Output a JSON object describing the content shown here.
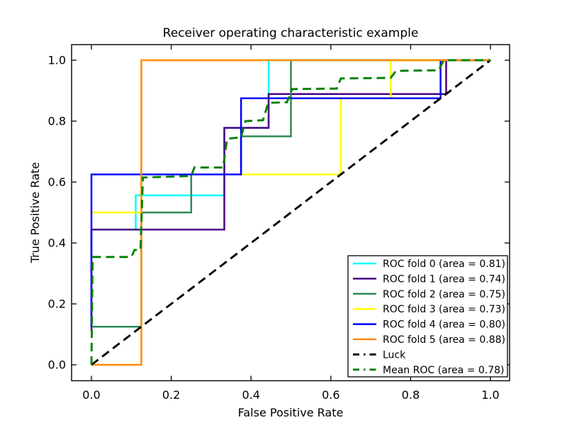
{
  "chart_data": {
    "type": "line",
    "title": "Receiver operating characteristic example",
    "xlabel": "False Positive Rate",
    "ylabel": "True Positive Rate",
    "xlim": [
      -0.05,
      1.05
    ],
    "ylim": [
      -0.05,
      1.05
    ],
    "xticks": [
      0.0,
      0.2,
      0.4,
      0.6,
      0.8,
      1.0
    ],
    "yticks": [
      0.0,
      0.2,
      0.4,
      0.6,
      0.8,
      1.0
    ],
    "grid": false,
    "legend_position": "lower right",
    "series": [
      {
        "id": "roc-fold-0",
        "name": "ROC fold 0 (area = 0.81)",
        "area": 0.81,
        "color": "#00FFFF",
        "style": "solid",
        "points": [
          [
            0,
            0.444
          ],
          [
            0.111,
            0.444
          ],
          [
            0.111,
            0.556
          ],
          [
            0.333,
            0.556
          ],
          [
            0.333,
            0.778
          ],
          [
            0.444,
            0.778
          ],
          [
            0.444,
            1.0
          ],
          [
            1.0,
            1.0
          ]
        ]
      },
      {
        "id": "roc-fold-1",
        "name": "ROC fold 1 (area = 0.74)",
        "area": 0.74,
        "color": "#4B0082",
        "style": "solid",
        "points": [
          [
            0,
            0.111
          ],
          [
            0,
            0.444
          ],
          [
            0.333,
            0.444
          ],
          [
            0.333,
            0.778
          ],
          [
            0.444,
            0.778
          ],
          [
            0.444,
            0.889
          ],
          [
            0.889,
            0.889
          ],
          [
            0.889,
            1.0
          ],
          [
            1.0,
            1.0
          ]
        ]
      },
      {
        "id": "roc-fold-2",
        "name": "ROC fold 2 (area = 0.75)",
        "area": 0.75,
        "color": "#2E8B57",
        "style": "solid",
        "points": [
          [
            0,
            0.125
          ],
          [
            0.125,
            0.125
          ],
          [
            0.125,
            0.5
          ],
          [
            0.25,
            0.5
          ],
          [
            0.25,
            0.625
          ],
          [
            0.375,
            0.625
          ],
          [
            0.375,
            0.75
          ],
          [
            0.5,
            0.75
          ],
          [
            0.5,
            1.0
          ],
          [
            1.0,
            1.0
          ]
        ]
      },
      {
        "id": "roc-fold-3",
        "name": "ROC fold 3 (area = 0.73)",
        "area": 0.73,
        "color": "#FFFF00",
        "style": "solid",
        "points": [
          [
            0,
            0.5
          ],
          [
            0.125,
            0.5
          ],
          [
            0.125,
            0.625
          ],
          [
            0.625,
            0.625
          ],
          [
            0.625,
            0.875
          ],
          [
            0.75,
            0.875
          ],
          [
            0.75,
            1.0
          ],
          [
            1.0,
            1.0
          ]
        ]
      },
      {
        "id": "roc-fold-4",
        "name": "ROC fold 4 (area = 0.80)",
        "area": 0.8,
        "color": "#0000FF",
        "style": "solid",
        "points": [
          [
            0,
            0.125
          ],
          [
            0,
            0.625
          ],
          [
            0.375,
            0.625
          ],
          [
            0.375,
            0.875
          ],
          [
            0.875,
            0.875
          ],
          [
            0.875,
            1.0
          ],
          [
            1.0,
            1.0
          ]
        ]
      },
      {
        "id": "roc-fold-5",
        "name": "ROC fold 5 (area = 0.88)",
        "area": 0.88,
        "color": "#FF8C00",
        "style": "solid",
        "points": [
          [
            0,
            0
          ],
          [
            0.125,
            0
          ],
          [
            0.125,
            1.0
          ],
          [
            1.0,
            1.0
          ]
        ]
      },
      {
        "id": "luck",
        "name": "Luck",
        "color": "#000000",
        "style": "dashed",
        "points": [
          [
            0,
            0
          ],
          [
            1.0,
            1.0
          ]
        ]
      },
      {
        "id": "mean-roc",
        "name": "Mean ROC (area = 0.78)",
        "area": 0.78,
        "color": "#008000",
        "style": "dashed",
        "points": [
          [
            0,
            0
          ],
          [
            0.003,
            0.354
          ],
          [
            0.1,
            0.354
          ],
          [
            0.108,
            0.377
          ],
          [
            0.123,
            0.377
          ],
          [
            0.129,
            0.615
          ],
          [
            0.25,
            0.62
          ],
          [
            0.258,
            0.648
          ],
          [
            0.33,
            0.648
          ],
          [
            0.34,
            0.742
          ],
          [
            0.375,
            0.747
          ],
          [
            0.386,
            0.8
          ],
          [
            0.43,
            0.803
          ],
          [
            0.443,
            0.86
          ],
          [
            0.49,
            0.862
          ],
          [
            0.503,
            0.905
          ],
          [
            0.615,
            0.907
          ],
          [
            0.625,
            0.94
          ],
          [
            0.75,
            0.942
          ],
          [
            0.763,
            0.965
          ],
          [
            0.87,
            0.967
          ],
          [
            0.883,
            1.0
          ],
          [
            1.0,
            1.0
          ]
        ]
      }
    ]
  }
}
